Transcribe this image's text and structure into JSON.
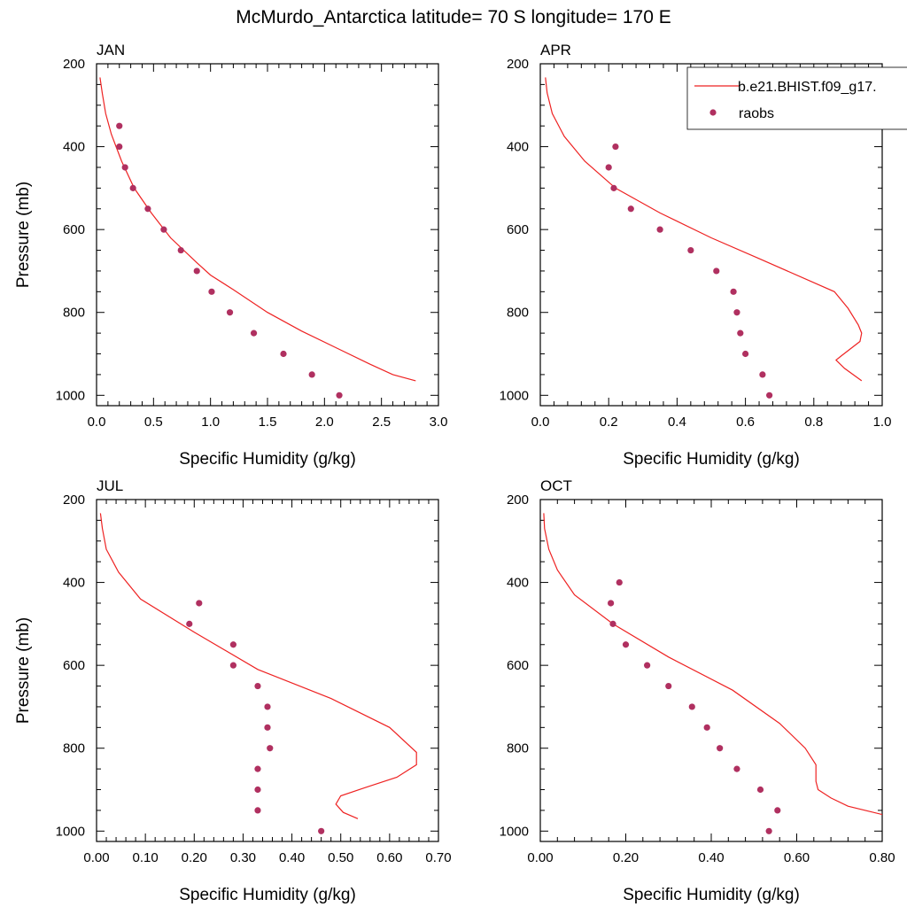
{
  "title": "McMurdo_Antarctica  latitude= 70 S longitude= 170 E",
  "legend": {
    "model_label": "b.e21.BHIST.f09_g17.",
    "obs_label": "raobs"
  },
  "colors": {
    "model_line": "#ee2222",
    "obs_marker": "#b03060",
    "axis": "#000000"
  },
  "chart_data": [
    {
      "type": "line",
      "title": "JAN",
      "xlabel": "Specific Humidity (g/kg)",
      "ylabel": "Pressure (mb)",
      "xlim": [
        0,
        3.0
      ],
      "ylim": [
        1025,
        200
      ],
      "y_inverted": true,
      "xticks": [
        0,
        0.5,
        1.0,
        1.5,
        2.0,
        2.5,
        3.0
      ],
      "xtick_labels": [
        "0.0",
        "0.5",
        "1.0",
        "1.5",
        "2.0",
        "2.5",
        "3.0"
      ],
      "yticks": [
        200,
        400,
        600,
        800,
        1000
      ],
      "ytick_labels": [
        "200",
        "400",
        "600",
        "800",
        "1000"
      ],
      "series": [
        {
          "name": "b.e21.BHIST.f09_g17.",
          "kind": "line",
          "points": [
            [
              0.03,
              233
            ],
            [
              0.05,
              270
            ],
            [
              0.08,
              320
            ],
            [
              0.13,
              370
            ],
            [
              0.22,
              435
            ],
            [
              0.33,
              500
            ],
            [
              0.48,
              560
            ],
            [
              0.65,
              620
            ],
            [
              0.88,
              680
            ],
            [
              1.0,
              710
            ],
            [
              1.2,
              745
            ],
            [
              1.5,
              800
            ],
            [
              1.8,
              845
            ],
            [
              2.1,
              885
            ],
            [
              2.4,
              925
            ],
            [
              2.6,
              950
            ],
            [
              2.8,
              965
            ]
          ]
        },
        {
          "name": "raobs",
          "kind": "scatter",
          "points": [
            [
              0.2,
              350
            ],
            [
              0.2,
              400
            ],
            [
              0.25,
              450
            ],
            [
              0.32,
              500
            ],
            [
              0.45,
              550
            ],
            [
              0.59,
              600
            ],
            [
              0.74,
              650
            ],
            [
              0.88,
              700
            ],
            [
              1.01,
              750
            ],
            [
              1.17,
              800
            ],
            [
              1.38,
              850
            ],
            [
              1.64,
              900
            ],
            [
              1.89,
              950
            ],
            [
              2.13,
              1000
            ]
          ]
        }
      ]
    },
    {
      "type": "line",
      "title": "APR",
      "xlabel": "Specific Humidity (g/kg)",
      "ylabel": "",
      "xlim": [
        0,
        1.0
      ],
      "ylim": [
        1025,
        200
      ],
      "y_inverted": true,
      "xticks": [
        0,
        0.2,
        0.4,
        0.6,
        0.8,
        1.0
      ],
      "xtick_labels": [
        "0.0",
        "0.2",
        "0.4",
        "0.6",
        "0.8",
        "1.0"
      ],
      "yticks": [
        200,
        400,
        600,
        800,
        1000
      ],
      "ytick_labels": [
        "200",
        "400",
        "600",
        "800",
        "1000"
      ],
      "series": [
        {
          "name": "b.e21.BHIST.f09_g17.",
          "kind": "line",
          "points": [
            [
              0.015,
              233
            ],
            [
              0.02,
              270
            ],
            [
              0.035,
              320
            ],
            [
              0.07,
              375
            ],
            [
              0.13,
              435
            ],
            [
              0.22,
              500
            ],
            [
              0.35,
              560
            ],
            [
              0.5,
              620
            ],
            [
              0.64,
              670
            ],
            [
              0.86,
              750
            ],
            [
              0.9,
              790
            ],
            [
              0.93,
              830
            ],
            [
              0.94,
              850
            ],
            [
              0.935,
              870
            ],
            [
              0.88,
              905
            ],
            [
              0.865,
              915
            ],
            [
              0.89,
              935
            ],
            [
              0.94,
              965
            ]
          ]
        },
        {
          "name": "raobs",
          "kind": "scatter",
          "points": [
            [
              0.22,
              400
            ],
            [
              0.2,
              450
            ],
            [
              0.215,
              500
            ],
            [
              0.265,
              550
            ],
            [
              0.35,
              600
            ],
            [
              0.44,
              650
            ],
            [
              0.515,
              700
            ],
            [
              0.565,
              750
            ],
            [
              0.575,
              800
            ],
            [
              0.585,
              850
            ],
            [
              0.6,
              900
            ],
            [
              0.65,
              950
            ],
            [
              0.67,
              1000
            ]
          ]
        }
      ]
    },
    {
      "type": "line",
      "title": "JUL",
      "xlabel": "Specific Humidity (g/kg)",
      "ylabel": "Pressure (mb)",
      "xlim": [
        0,
        0.7
      ],
      "ylim": [
        1025,
        200
      ],
      "y_inverted": true,
      "xticks": [
        0,
        0.1,
        0.2,
        0.3,
        0.4,
        0.5,
        0.6,
        0.7
      ],
      "xtick_labels": [
        "0.00",
        "0.10",
        "0.20",
        "0.30",
        "0.40",
        "0.50",
        "0.60",
        "0.70"
      ],
      "yticks": [
        200,
        400,
        600,
        800,
        1000
      ],
      "ytick_labels": [
        "200",
        "400",
        "600",
        "800",
        "1000"
      ],
      "series": [
        {
          "name": "b.e21.BHIST.f09_g17.",
          "kind": "line",
          "points": [
            [
              0.008,
              233
            ],
            [
              0.012,
              270
            ],
            [
              0.02,
              320
            ],
            [
              0.045,
              375
            ],
            [
              0.09,
              440
            ],
            [
              0.2,
              520
            ],
            [
              0.33,
              610
            ],
            [
              0.48,
              680
            ],
            [
              0.6,
              750
            ],
            [
              0.655,
              810
            ],
            [
              0.655,
              840
            ],
            [
              0.615,
              870
            ],
            [
              0.55,
              895
            ],
            [
              0.5,
              915
            ],
            [
              0.49,
              935
            ],
            [
              0.505,
              955
            ],
            [
              0.535,
              970
            ]
          ]
        },
        {
          "name": "raobs",
          "kind": "scatter",
          "points": [
            [
              0.21,
              450
            ],
            [
              0.19,
              500
            ],
            [
              0.28,
              550
            ],
            [
              0.28,
              600
            ],
            [
              0.33,
              650
            ],
            [
              0.35,
              700
            ],
            [
              0.35,
              750
            ],
            [
              0.355,
              800
            ],
            [
              0.33,
              850
            ],
            [
              0.33,
              900
            ],
            [
              0.33,
              950
            ],
            [
              0.46,
              1000
            ]
          ]
        }
      ]
    },
    {
      "type": "line",
      "title": "OCT",
      "xlabel": "Specific Humidity (g/kg)",
      "ylabel": "",
      "xlim": [
        0,
        0.8
      ],
      "ylim": [
        1025,
        200
      ],
      "y_inverted": true,
      "xticks": [
        0,
        0.2,
        0.4,
        0.6,
        0.8
      ],
      "xtick_labels": [
        "0.00",
        "0.20",
        "0.40",
        "0.60",
        "0.80"
      ],
      "yticks": [
        200,
        400,
        600,
        800,
        1000
      ],
      "ytick_labels": [
        "200",
        "400",
        "600",
        "800",
        "1000"
      ],
      "series": [
        {
          "name": "b.e21.BHIST.f09_g17.",
          "kind": "line",
          "points": [
            [
              0.008,
              233
            ],
            [
              0.01,
              270
            ],
            [
              0.02,
              320
            ],
            [
              0.04,
              370
            ],
            [
              0.08,
              430
            ],
            [
              0.17,
              500
            ],
            [
              0.3,
              580
            ],
            [
              0.45,
              660
            ],
            [
              0.56,
              740
            ],
            [
              0.62,
              800
            ],
            [
              0.645,
              840
            ],
            [
              0.645,
              880
            ],
            [
              0.65,
              900
            ],
            [
              0.68,
              920
            ],
            [
              0.72,
              940
            ],
            [
              0.8,
              960
            ]
          ]
        },
        {
          "name": "raobs",
          "kind": "scatter",
          "points": [
            [
              0.185,
              400
            ],
            [
              0.165,
              450
            ],
            [
              0.17,
              500
            ],
            [
              0.2,
              550
            ],
            [
              0.25,
              600
            ],
            [
              0.3,
              650
            ],
            [
              0.355,
              700
            ],
            [
              0.39,
              750
            ],
            [
              0.42,
              800
            ],
            [
              0.46,
              850
            ],
            [
              0.515,
              900
            ],
            [
              0.555,
              950
            ],
            [
              0.535,
              1000
            ]
          ]
        }
      ]
    }
  ]
}
